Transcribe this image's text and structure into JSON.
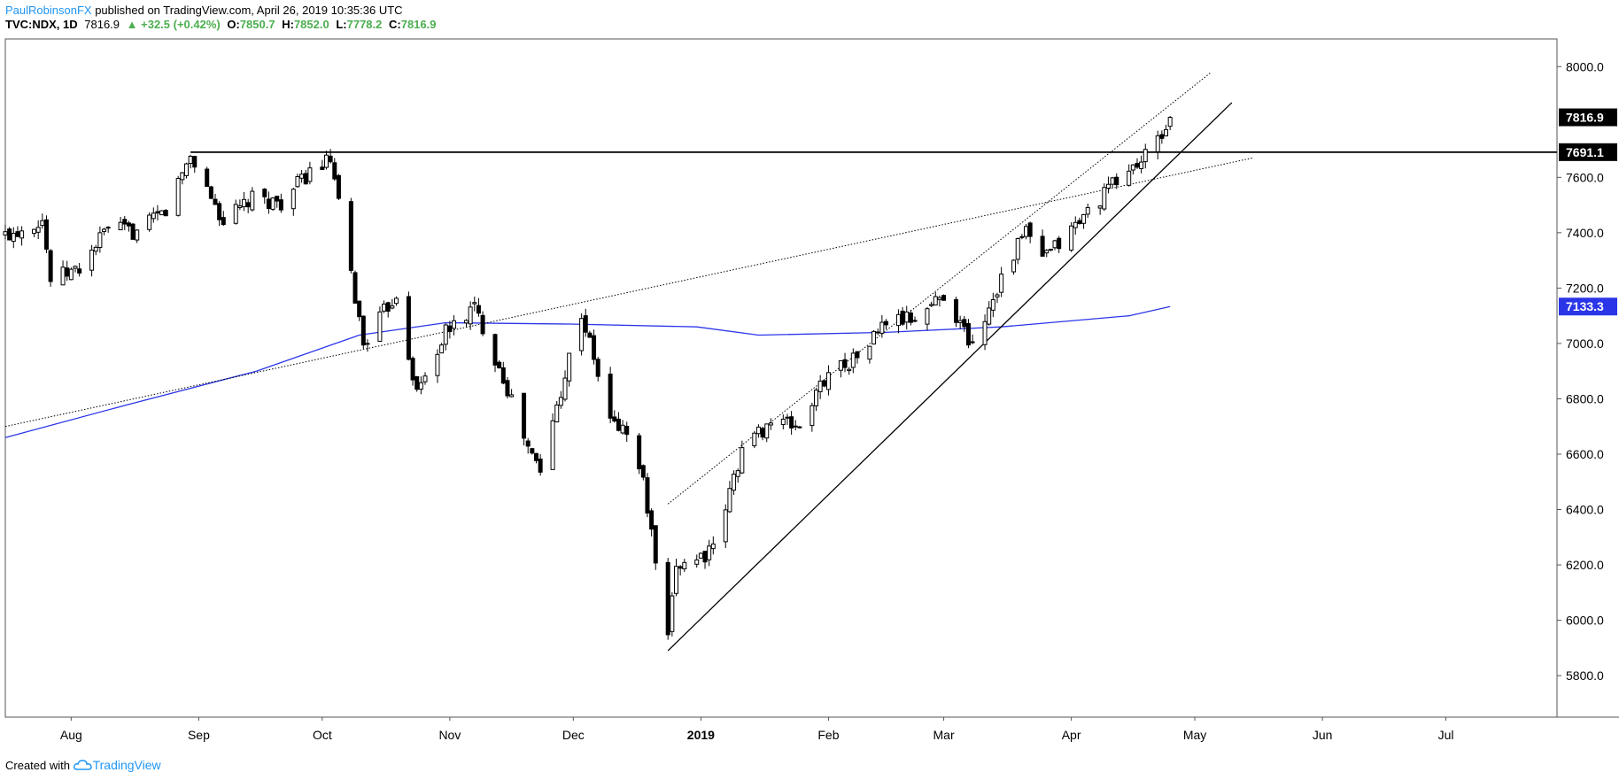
{
  "header": {
    "author": "PaulRobinsonFX",
    "published_text": "published on TradingView.com, April 26, 2019 10:35:36 UTC"
  },
  "ticker": {
    "symbol": "TVC:NDX, 1D",
    "last": "7816.9",
    "change": "▲ +32.5 (+0.42%)",
    "open_label": "O:",
    "open": "7850.7",
    "high_label": "H:",
    "high": "7852.0",
    "low_label": "L:",
    "low": "7778.2",
    "close_label": "C:",
    "close": "7816.9"
  },
  "footer": {
    "created_with": "Created with",
    "brand": "TradingView"
  },
  "colors": {
    "up_candle": "#ffffff",
    "down_candle": "#000000",
    "ma_line": "#2b35e8",
    "price_tag_bg": "#000000",
    "ma_tag_bg": "#2b35e8",
    "accent": "#2196f3",
    "green": "#4caf50"
  },
  "chart_data": {
    "type": "candlestick",
    "y_axis": {
      "ticks": [
        5800,
        6000,
        6200,
        6400,
        6600,
        6800,
        7000,
        7200,
        7400,
        7600,
        8000
      ],
      "tick_labels": [
        "5800.0",
        "6000.0",
        "6200.0",
        "6400.0",
        "6600.0",
        "6800.0",
        "7000.0",
        "7200.0",
        "7400.0",
        "7600.0",
        "8000.0"
      ],
      "range": [
        5650,
        8100
      ]
    },
    "x_axis": {
      "labels": [
        {
          "text": "Aug",
          "date": "2018-08-01"
        },
        {
          "text": "Sep",
          "date": "2018-09-01"
        },
        {
          "text": "Oct",
          "date": "2018-10-01"
        },
        {
          "text": "Nov",
          "date": "2018-11-01"
        },
        {
          "text": "Dec",
          "date": "2018-12-01"
        },
        {
          "text": "2019",
          "date": "2019-01-01",
          "bold": true
        },
        {
          "text": "Feb",
          "date": "2019-02-01"
        },
        {
          "text": "Mar",
          "date": "2019-03-01"
        },
        {
          "text": "Apr",
          "date": "2019-04-01"
        },
        {
          "text": "May",
          "date": "2019-05-01"
        },
        {
          "text": "Jun",
          "date": "2019-06-01"
        },
        {
          "text": "Jul",
          "date": "2019-07-01"
        }
      ],
      "range": [
        "2018-07-16",
        "2019-07-28"
      ]
    },
    "price_tags": [
      {
        "label": "7816.9",
        "value": 7816.9,
        "style": "last"
      },
      {
        "label": "7691.1",
        "value": 7691.1,
        "style": "level"
      },
      {
        "label": "7133.3",
        "value": 7133.3,
        "style": "ma"
      }
    ],
    "close_path": [
      [
        "2018-07-16",
        7390
      ],
      [
        "2018-07-25",
        7450
      ],
      [
        "2018-07-27",
        7230
      ],
      [
        "2018-08-03",
        7270
      ],
      [
        "2018-08-10",
        7420
      ],
      [
        "2018-08-17",
        7400
      ],
      [
        "2018-08-24",
        7480
      ],
      [
        "2018-08-30",
        7680
      ],
      [
        "2018-09-07",
        7440
      ],
      [
        "2018-09-14",
        7520
      ],
      [
        "2018-09-21",
        7510
      ],
      [
        "2018-09-28",
        7620
      ],
      [
        "2018-10-03",
        7660
      ],
      [
        "2018-10-11",
        7000
      ],
      [
        "2018-10-19",
        7180
      ],
      [
        "2018-10-24",
        6820
      ],
      [
        "2018-10-31",
        7040
      ],
      [
        "2018-11-07",
        7130
      ],
      [
        "2018-11-14",
        6880
      ],
      [
        "2018-11-20",
        6620
      ],
      [
        "2018-11-23",
        6540
      ],
      [
        "2018-11-30",
        6950
      ],
      [
        "2018-12-03",
        7110
      ],
      [
        "2018-12-10",
        6720
      ],
      [
        "2018-12-14",
        6680
      ],
      [
        "2018-12-18",
        6500
      ],
      [
        "2018-12-24",
        5920
      ],
      [
        "2018-12-26",
        6200
      ],
      [
        "2019-01-04",
        6250
      ],
      [
        "2019-01-11",
        6620
      ],
      [
        "2019-01-18",
        6720
      ],
      [
        "2019-01-25",
        6700
      ],
      [
        "2019-02-01",
        6900
      ],
      [
        "2019-02-08",
        6950
      ],
      [
        "2019-02-15",
        7080
      ],
      [
        "2019-02-22",
        7090
      ],
      [
        "2019-03-01",
        7180
      ],
      [
        "2019-03-08",
        6990
      ],
      [
        "2019-03-15",
        7240
      ],
      [
        "2019-03-21",
        7410
      ],
      [
        "2019-03-25",
        7300
      ],
      [
        "2019-04-01",
        7410
      ],
      [
        "2019-04-12",
        7590
      ],
      [
        "2019-04-18",
        7660
      ],
      [
        "2019-04-23",
        7750
      ],
      [
        "2019-04-25",
        7816.9
      ]
    ],
    "moving_average": [
      [
        "2018-07-16",
        6660
      ],
      [
        "2018-08-15",
        6780
      ],
      [
        "2018-09-15",
        6900
      ],
      [
        "2018-10-10",
        7030
      ],
      [
        "2018-10-31",
        7075
      ],
      [
        "2018-11-30",
        7070
      ],
      [
        "2018-12-31",
        7060
      ],
      [
        "2019-01-15",
        7030
      ],
      [
        "2019-02-15",
        7040
      ],
      [
        "2019-03-15",
        7060
      ],
      [
        "2019-04-15",
        7100
      ],
      [
        "2019-04-25",
        7133.3
      ]
    ],
    "trendlines": [
      {
        "name": "resistance-horizontal",
        "style": "solid",
        "points": [
          [
            "2018-08-30",
            7691.1
          ],
          [
            "2019-07-28",
            7691.1
          ]
        ]
      },
      {
        "name": "support-trendline",
        "style": "solid",
        "points": [
          [
            "2018-12-24",
            5890
          ],
          [
            "2019-05-10",
            7870
          ]
        ]
      },
      {
        "name": "channel-upper",
        "style": "dotted",
        "points": [
          [
            "2018-12-24",
            6420
          ],
          [
            "2019-05-05",
            7980
          ]
        ]
      },
      {
        "name": "long-dotted-trendline",
        "style": "dotted",
        "points": [
          [
            "2018-07-16",
            6700
          ],
          [
            "2019-05-15",
            7670
          ]
        ]
      }
    ]
  }
}
